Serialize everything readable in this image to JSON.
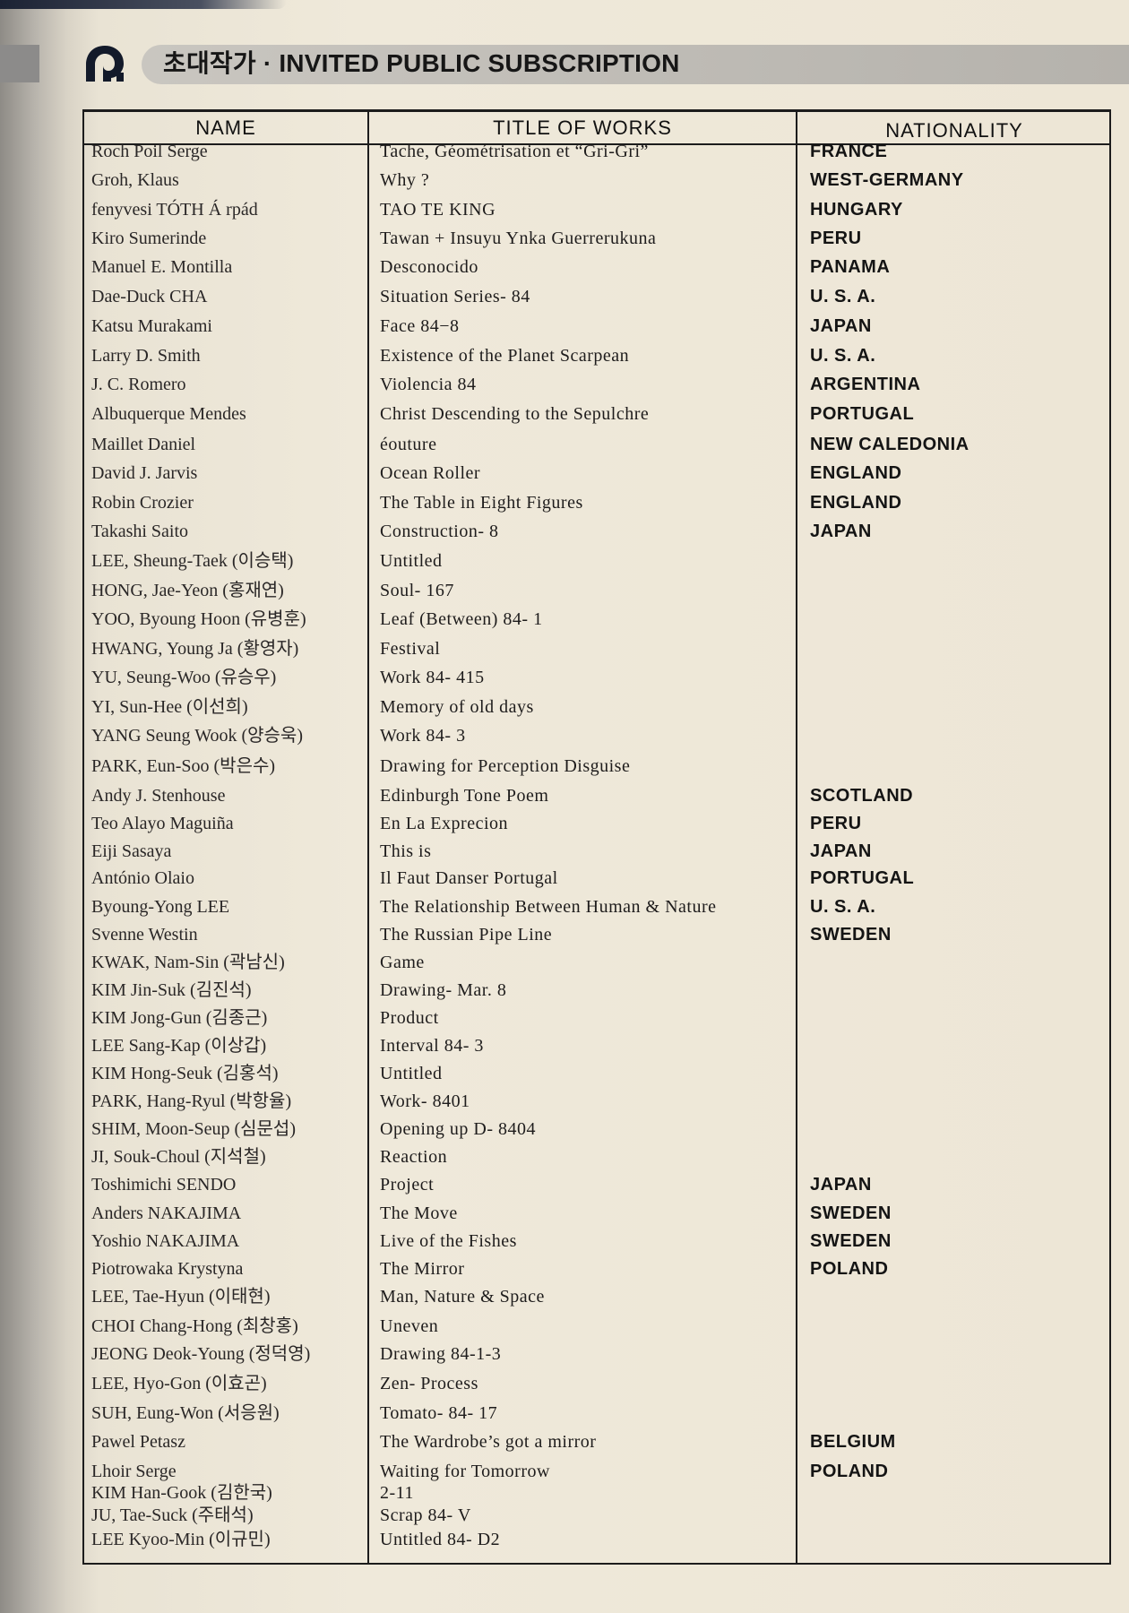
{
  "header": {
    "title": "초대작가 · INVITED PUBLIC SUBSCRIPTION",
    "logo_icon": "spiral-logo-icon"
  },
  "table": {
    "columns": [
      "NAME",
      "TITLE OF WORKS",
      "NATIONALITY"
    ],
    "rows": [
      {
        "name": "Roch Poil Serge",
        "title": "Tache, Géométrisation et “Gri-Gri”",
        "nationality": "FRANCE"
      },
      {
        "name": "Groh, Klaus",
        "title": "Why ?",
        "nationality": "WEST-GERMANY"
      },
      {
        "name": "fenyvesi TÓTH Á rpád",
        "title": "TAO TE KING",
        "nationality": "HUNGARY"
      },
      {
        "name": "Kiro Sumerinde",
        "title": "Tawan + Insuyu Ynka Guerrerukuna",
        "nationality": "PERU"
      },
      {
        "name": "Manuel E. Montilla",
        "title": "Desconocido",
        "nationality": "PANAMA"
      },
      {
        "name": "Dae-Duck CHA",
        "title": "Situation Series- 84",
        "nationality": "U. S. A."
      },
      {
        "name": "Katsu Murakami",
        "title": "Face 84−8",
        "nationality": "JAPAN"
      },
      {
        "name": "Larry D. Smith",
        "title": "Existence of the Planet Scarpean",
        "nationality": "U. S. A."
      },
      {
        "name": "J. C. Romero",
        "title": "Violencia 84",
        "nationality": "ARGENTINA"
      },
      {
        "name": "Albuquerque Mendes",
        "title": "Christ Descending to the Sepulchre",
        "nationality": "PORTUGAL"
      },
      {
        "name": "Maillet Daniel",
        "title": "éouture",
        "nationality": "NEW CALEDONIA"
      },
      {
        "name": "David J. Jarvis",
        "title": "Ocean Roller",
        "nationality": "ENGLAND"
      },
      {
        "name": "Robin Crozier",
        "title": "The Table in Eight Figures",
        "nationality": "ENGLAND"
      },
      {
        "name": "Takashi Saito",
        "title": "Construction- 8",
        "nationality": "JAPAN"
      },
      {
        "name": "LEE, Sheung-Taek (이승택)",
        "title": "Untitled",
        "nationality": ""
      },
      {
        "name": "HONG, Jae-Yeon (홍재연)",
        "title": "Soul- 167",
        "nationality": ""
      },
      {
        "name": "YOO, Byoung Hoon (유병훈)",
        "title": "Leaf (Between) 84- 1",
        "nationality": ""
      },
      {
        "name": "HWANG, Young Ja (황영자)",
        "title": "Festival",
        "nationality": ""
      },
      {
        "name": "YU, Seung-Woo (유승우)",
        "title": "Work 84- 415",
        "nationality": ""
      },
      {
        "name": "YI, Sun-Hee (이선희)",
        "title": "Memory of old days",
        "nationality": ""
      },
      {
        "name": "YANG Seung Wook (양승욱)",
        "title": "Work 84- 3",
        "nationality": ""
      },
      {
        "name": "PARK, Eun-Soo (박은수)",
        "title": "Drawing for Perception Disguise",
        "nationality": ""
      },
      {
        "name": "Andy J. Stenhouse",
        "title": "Edinburgh Tone Poem",
        "nationality": "SCOTLAND"
      },
      {
        "name": "Teo Alayo Maguiña",
        "title": "En La Exprecion",
        "nationality": "PERU"
      },
      {
        "name": "Eiji Sasaya",
        "title": "This is",
        "nationality": "JAPAN"
      },
      {
        "name": "António Olaio",
        "title": "Il Faut Danser Portugal",
        "nationality": "PORTUGAL"
      },
      {
        "name": "Byoung-Yong LEE",
        "title": "The Relationship Between Human & Nature",
        "nationality": "U. S. A."
      },
      {
        "name": "Svenne Westin",
        "title": "The Russian Pipe Line",
        "nationality": "SWEDEN"
      },
      {
        "name": "KWAK, Nam-Sin (곽남신)",
        "title": "Game",
        "nationality": ""
      },
      {
        "name": "KIM Jin-Suk (김진석)",
        "title": "Drawing- Mar. 8",
        "nationality": ""
      },
      {
        "name": "KIM Jong-Gun (김종근)",
        "title": "Product",
        "nationality": ""
      },
      {
        "name": "LEE Sang-Kap (이상갑)",
        "title": "Interval 84- 3",
        "nationality": ""
      },
      {
        "name": "KIM Hong-Seuk (김홍석)",
        "title": "Untitled",
        "nationality": ""
      },
      {
        "name": "PARK, Hang-Ryul (박항율)",
        "title": "Work- 8401",
        "nationality": ""
      },
      {
        "name": "SHIM, Moon-Seup (심문섭)",
        "title": "Opening up D- 8404",
        "nationality": ""
      },
      {
        "name": "JI, Souk-Choul (지석철)",
        "title": "Reaction",
        "nationality": ""
      },
      {
        "name": "Toshimichi SENDO",
        "title": "Project",
        "nationality": "JAPAN"
      },
      {
        "name": "Anders NAKAJIMA",
        "title": "The Move",
        "nationality": "SWEDEN"
      },
      {
        "name": "Yoshio NAKAJIMA",
        "title": "Live of the Fishes",
        "nationality": "SWEDEN"
      },
      {
        "name": "Piotrowaka Krystyna",
        "title": "The Mirror",
        "nationality": "POLAND"
      },
      {
        "name": "LEE, Tae-Hyun (이태현)",
        "title": "Man, Nature & Space",
        "nationality": ""
      },
      {
        "name": "CHOI Chang-Hong (최창홍)",
        "title": "Uneven",
        "nationality": ""
      },
      {
        "name": "JEONG Deok-Young (정덕영)",
        "title": "Drawing 84-1-3",
        "nationality": ""
      },
      {
        "name": "LEE, Hyo-Gon (이효곤)",
        "title": "Zen- Process",
        "nationality": ""
      },
      {
        "name": "SUH, Eung-Won (서응원)",
        "title": "Tomato- 84- 17",
        "nationality": ""
      },
      {
        "name": "Pawel Petasz",
        "title": "The Wardrobe’s got a mirror",
        "nationality": "BELGIUM"
      },
      {
        "name": "Lhoir Serge",
        "title": "Waiting for Tomorrow",
        "nationality": "POLAND"
      },
      {
        "name": "KIM Han-Gook (김한국)",
        "title": "2-11",
        "nationality": ""
      },
      {
        "name": "JU, Tae-Suck (주태석)",
        "title": "Scrap 84- V",
        "nationality": ""
      },
      {
        "name": "LEE Kyoo-Min (이규민)",
        "title": "Untitled 84- D2",
        "nationality": ""
      }
    ]
  }
}
